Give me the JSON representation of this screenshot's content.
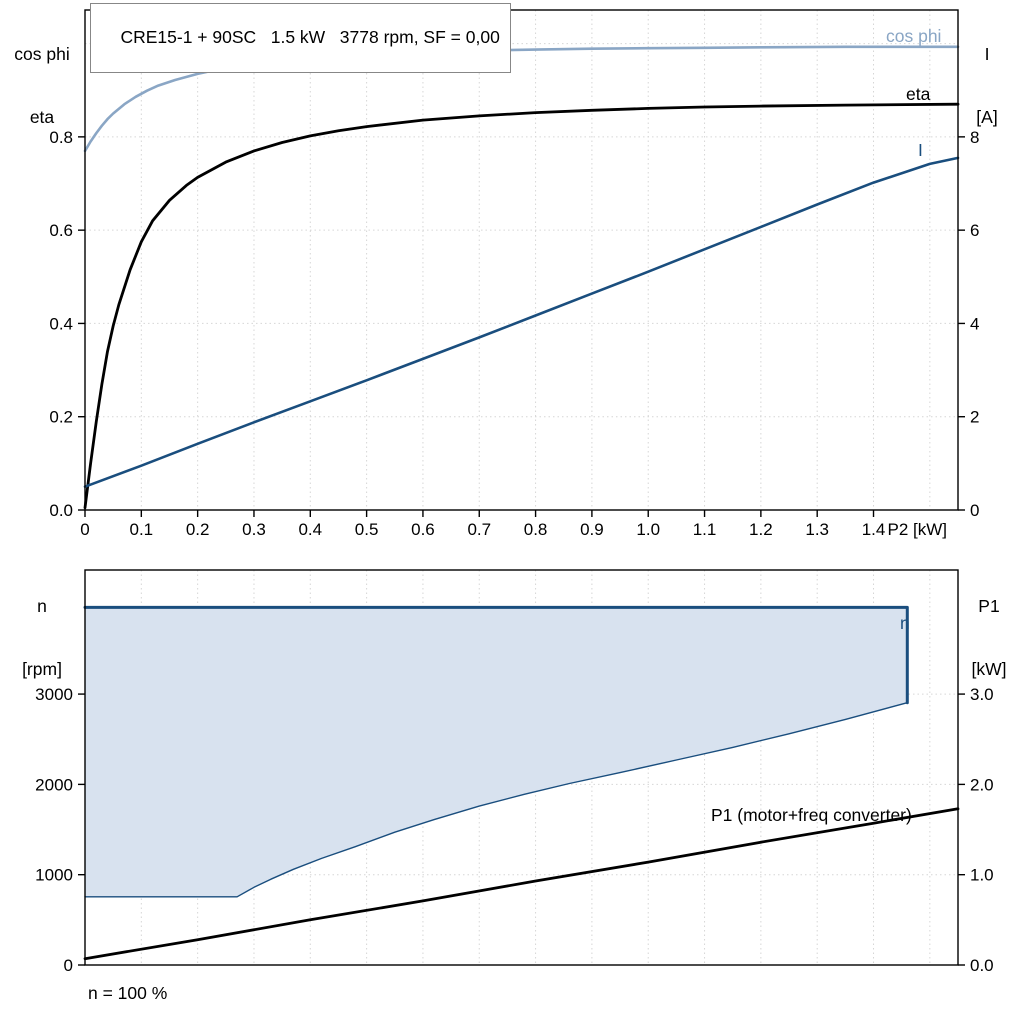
{
  "colors": {
    "light_blue": "#8aa6c5",
    "dark_blue": "#1a4e7e",
    "black": "#000000",
    "fill": "#d8e2ef",
    "grid": "#d6d6d6"
  },
  "header": {
    "title": "CRE15-1 + 90SC   1.5 kW   3778 rpm, SF = 0,00"
  },
  "axis_labels": {
    "top_left_1": "cos phi",
    "top_left_2": "eta",
    "top_right_1": "I",
    "top_right_2": "[A]",
    "bottom_left_1": "n",
    "bottom_left_2": "[rpm]",
    "bottom_right_1": "P1",
    "bottom_right_2": "[kW]"
  },
  "curve_labels": {
    "cos_phi": "cos phi",
    "eta": "eta",
    "current": "I",
    "speed": "n",
    "p1": "P1 (motor+freq converter)"
  },
  "footnote": "n = 100 %",
  "chart_data": [
    {
      "id": "motor-electrical-chart",
      "type": "line",
      "title": "CRE15-1 + 90SC   1.5 kW   3778 rpm, SF = 0,00",
      "xlabel": "P2 [kW]",
      "x": {
        "min": 0,
        "max": 1.55,
        "ticks": [
          0,
          0.1,
          0.2,
          0.3,
          0.4,
          0.5,
          0.6,
          0.7,
          0.8,
          0.9,
          1.0,
          1.1,
          1.2,
          1.3,
          1.4
        ],
        "tick_labels": [
          "0",
          "0.1",
          "0.2",
          "0.3",
          "0.4",
          "0.5",
          "0.6",
          "0.7",
          "0.8",
          "0.9",
          "1.0",
          "1.1",
          "1.2",
          "1.3",
          "1.4"
        ],
        "grid": [
          0.1,
          0.2,
          0.3,
          0.4,
          0.5,
          0.6,
          0.7,
          0.8,
          0.9,
          1.0,
          1.1,
          1.2,
          1.3,
          1.4,
          1.5
        ]
      },
      "y_left": {
        "label": "cos phi / eta",
        "min": 0,
        "max": 1.072,
        "ticks": [
          0,
          0.2,
          0.4,
          0.6,
          0.8
        ],
        "tick_labels": [
          "0.0",
          "0.2",
          "0.4",
          "0.6",
          "0.8"
        ],
        "grid": [
          0.2,
          0.4,
          0.6,
          0.8,
          1.0
        ]
      },
      "y_right": {
        "label": "I [A]",
        "scale": 0.1,
        "ticks": [
          0,
          2,
          4,
          6,
          8
        ],
        "tick_labels": [
          "0",
          "2",
          "4",
          "6",
          "8"
        ]
      },
      "series": [
        {
          "name": "cos phi",
          "id": "cos-phi",
          "color_key": "light_blue",
          "width": 2.6,
          "axis": "left",
          "points": [
            [
              0,
              0.77
            ],
            [
              0.01,
              0.79
            ],
            [
              0.02,
              0.808
            ],
            [
              0.03,
              0.824
            ],
            [
              0.04,
              0.838
            ],
            [
              0.05,
              0.85
            ],
            [
              0.07,
              0.87
            ],
            [
              0.09,
              0.886
            ],
            [
              0.11,
              0.899
            ],
            [
              0.13,
              0.91
            ],
            [
              0.16,
              0.922
            ],
            [
              0.2,
              0.935
            ],
            [
              0.25,
              0.948
            ],
            [
              0.3,
              0.957
            ],
            [
              0.35,
              0.964
            ],
            [
              0.4,
              0.969
            ],
            [
              0.45,
              0.973
            ],
            [
              0.5,
              0.977
            ],
            [
              0.6,
              0.982
            ],
            [
              0.7,
              0.985
            ],
            [
              0.8,
              0.987
            ],
            [
              0.9,
              0.989
            ],
            [
              1.0,
              0.99
            ],
            [
              1.1,
              0.991
            ],
            [
              1.2,
              0.992
            ],
            [
              1.35,
              0.993
            ],
            [
              1.55,
              0.993
            ]
          ]
        },
        {
          "name": "eta",
          "id": "eta",
          "color_key": "black",
          "width": 2.8,
          "axis": "left",
          "points": [
            [
              0,
              0.005
            ],
            [
              0.01,
              0.1
            ],
            [
              0.02,
              0.19
            ],
            [
              0.03,
              0.27
            ],
            [
              0.04,
              0.34
            ],
            [
              0.05,
              0.395
            ],
            [
              0.06,
              0.44
            ],
            [
              0.08,
              0.515
            ],
            [
              0.1,
              0.575
            ],
            [
              0.12,
              0.62
            ],
            [
              0.15,
              0.664
            ],
            [
              0.18,
              0.696
            ],
            [
              0.2,
              0.713
            ],
            [
              0.25,
              0.746
            ],
            [
              0.3,
              0.77
            ],
            [
              0.35,
              0.788
            ],
            [
              0.4,
              0.802
            ],
            [
              0.45,
              0.813
            ],
            [
              0.5,
              0.822
            ],
            [
              0.6,
              0.836
            ],
            [
              0.7,
              0.845
            ],
            [
              0.8,
              0.852
            ],
            [
              0.9,
              0.857
            ],
            [
              1.0,
              0.861
            ],
            [
              1.1,
              0.864
            ],
            [
              1.2,
              0.866
            ],
            [
              1.35,
              0.868
            ],
            [
              1.55,
              0.87
            ]
          ]
        },
        {
          "name": "I",
          "id": "current",
          "color_key": "dark_blue",
          "width": 2.6,
          "axis": "right",
          "points": [
            [
              0,
              0.5
            ],
            [
              0.1,
              0.95
            ],
            [
              0.2,
              1.42
            ],
            [
              0.3,
              1.88
            ],
            [
              0.4,
              2.33
            ],
            [
              0.5,
              2.78
            ],
            [
              0.6,
              3.24
            ],
            [
              0.7,
              3.7
            ],
            [
              0.8,
              4.17
            ],
            [
              0.9,
              4.64
            ],
            [
              1.0,
              5.11
            ],
            [
              1.1,
              5.59
            ],
            [
              1.2,
              6.07
            ],
            [
              1.3,
              6.55
            ],
            [
              1.4,
              7.02
            ],
            [
              1.5,
              7.42
            ],
            [
              1.55,
              7.55
            ]
          ]
        }
      ]
    },
    {
      "id": "speed-input-power-chart",
      "type": "line",
      "title": "",
      "xlabel": "",
      "x": {
        "min": 0,
        "max": 1.55,
        "ticks": [],
        "tick_labels": [],
        "grid": [
          0.1,
          0.2,
          0.3,
          0.4,
          0.5,
          0.6,
          0.7,
          0.8,
          0.9,
          1.0,
          1.1,
          1.2,
          1.3,
          1.4,
          1.5
        ]
      },
      "y_left": {
        "label": "n [rpm]",
        "min": 0,
        "max": 4374,
        "ticks": [
          0,
          1000,
          2000,
          3000
        ],
        "tick_labels": [
          "0",
          "1000",
          "2000",
          "3000"
        ],
        "grid": [
          1000,
          2000,
          3000
        ]
      },
      "y_right": {
        "label": "P1 [kW]",
        "scale": 1000,
        "ticks": [
          0,
          1,
          2,
          3
        ],
        "tick_labels": [
          "0.0",
          "1.0",
          "2.0",
          "3.0"
        ]
      },
      "fill_region": {
        "name": "speed-operating-range-fill",
        "color_key": "fill",
        "points": [
          [
            0,
            755
          ],
          [
            0.27,
            755
          ],
          [
            0.3,
            860
          ],
          [
            0.33,
            950
          ],
          [
            0.37,
            1060
          ],
          [
            0.42,
            1180
          ],
          [
            0.48,
            1310
          ],
          [
            0.55,
            1470
          ],
          [
            0.62,
            1610
          ],
          [
            0.7,
            1760
          ],
          [
            0.78,
            1890
          ],
          [
            0.86,
            2010
          ],
          [
            0.95,
            2130
          ],
          [
            1.05,
            2270
          ],
          [
            1.15,
            2410
          ],
          [
            1.25,
            2560
          ],
          [
            1.35,
            2720
          ],
          [
            1.46,
            2905
          ],
          [
            1.46,
            3960
          ],
          [
            0,
            3960
          ]
        ]
      },
      "series": [
        {
          "name": "speed-range-lower-bound",
          "id": "speed-range-lower-bound",
          "color_key": "dark_blue",
          "width": 1.4,
          "axis": "left",
          "points": [
            [
              0,
              755
            ],
            [
              0.27,
              755
            ],
            [
              0.3,
              860
            ],
            [
              0.33,
              950
            ],
            [
              0.37,
              1060
            ],
            [
              0.42,
              1180
            ],
            [
              0.48,
              1310
            ],
            [
              0.55,
              1470
            ],
            [
              0.62,
              1610
            ],
            [
              0.7,
              1760
            ],
            [
              0.78,
              1890
            ],
            [
              0.86,
              2010
            ],
            [
              0.95,
              2130
            ],
            [
              1.05,
              2270
            ],
            [
              1.15,
              2410
            ],
            [
              1.25,
              2560
            ],
            [
              1.35,
              2720
            ],
            [
              1.46,
              2905
            ]
          ]
        },
        {
          "name": "n",
          "id": "speed",
          "color_key": "dark_blue",
          "width": 3,
          "axis": "left",
          "points": [
            [
              0,
              3960
            ],
            [
              1.46,
              3960
            ],
            [
              1.46,
              2905
            ]
          ]
        },
        {
          "name": "P1 (motor+freq converter)",
          "id": "p1",
          "color_key": "black",
          "width": 2.8,
          "axis": "right",
          "points": [
            [
              0,
              0.07
            ],
            [
              0.2,
              0.28
            ],
            [
              0.4,
              0.5
            ],
            [
              0.6,
              0.71
            ],
            [
              0.8,
              0.93
            ],
            [
              1.0,
              1.14
            ],
            [
              1.2,
              1.36
            ],
            [
              1.4,
              1.57
            ],
            [
              1.55,
              1.73
            ]
          ]
        }
      ],
      "footnote": "n = 100 %"
    }
  ]
}
